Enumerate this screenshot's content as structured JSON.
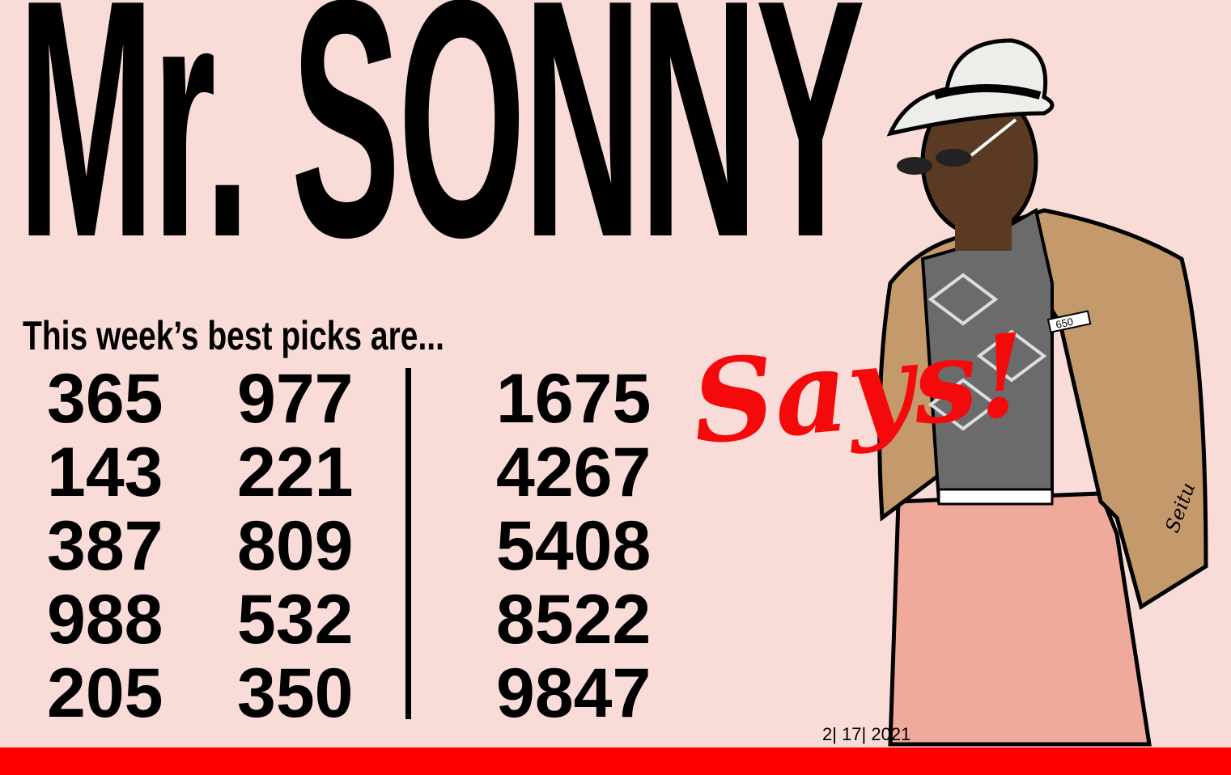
{
  "title": "Mr. SONNY",
  "title_script": "Says!",
  "subtitle": "This week’s best picks are...",
  "picks": {
    "column1": [
      "365",
      "143",
      "387",
      "988",
      "205"
    ],
    "column2": [
      "977",
      "221",
      "809",
      "532",
      "350"
    ],
    "column3": [
      "1675",
      "4267",
      "5408",
      "8522",
      "9847"
    ]
  },
  "date": "2| 17| 2021",
  "illustration": {
    "pocket_card": "650",
    "signature": "Seitu"
  },
  "colors": {
    "background": "#f9dcd8",
    "accent_red": "#ff0000",
    "text": "#000000",
    "jacket": "#c49a6c",
    "pants": "#f0aa9c"
  }
}
